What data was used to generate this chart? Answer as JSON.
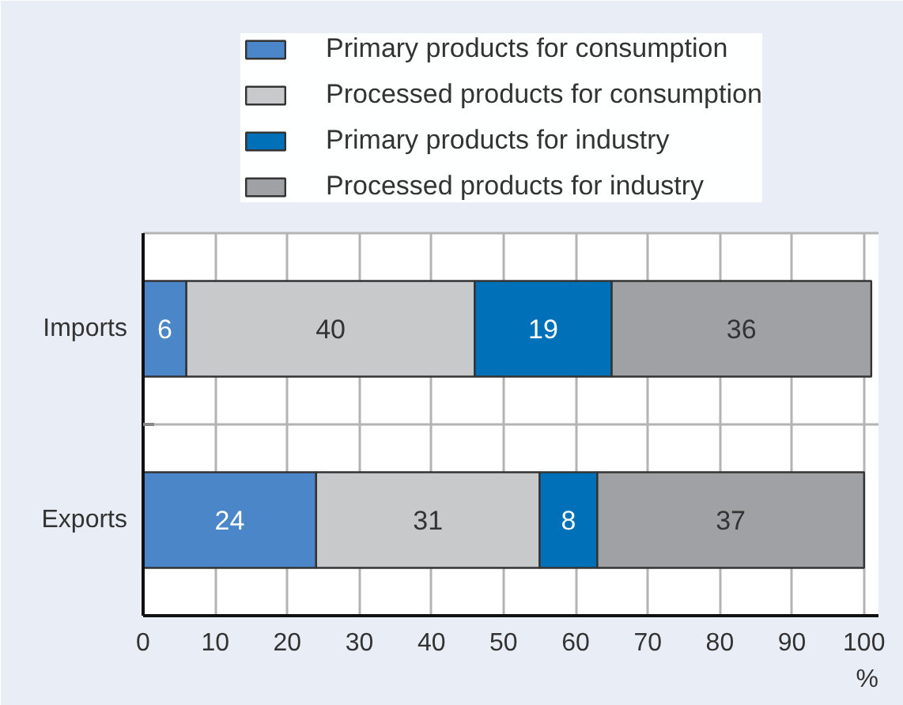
{
  "chart_data": {
    "type": "bar",
    "orientation": "horizontal",
    "stacked": true,
    "categories": [
      "Imports",
      "Exports"
    ],
    "series": [
      {
        "name": "Primary products for consumption",
        "color": "#4a86c8",
        "values": [
          6,
          24
        ]
      },
      {
        "name": "Processed products for consumption",
        "color": "#c8c9cb",
        "values": [
          40,
          31
        ]
      },
      {
        "name": "Primary products for industry",
        "color": "#0070b8",
        "values": [
          19,
          8
        ]
      },
      {
        "name": "Processed products for industry",
        "color": "#a0a1a5",
        "values": [
          36,
          37
        ]
      }
    ],
    "xlim": [
      0,
      102
    ],
    "xticks": [
      0,
      10,
      20,
      30,
      40,
      50,
      60,
      70,
      80,
      90,
      100
    ],
    "xlabel": "%",
    "data_labels": true,
    "grid": true,
    "legend": "top"
  }
}
